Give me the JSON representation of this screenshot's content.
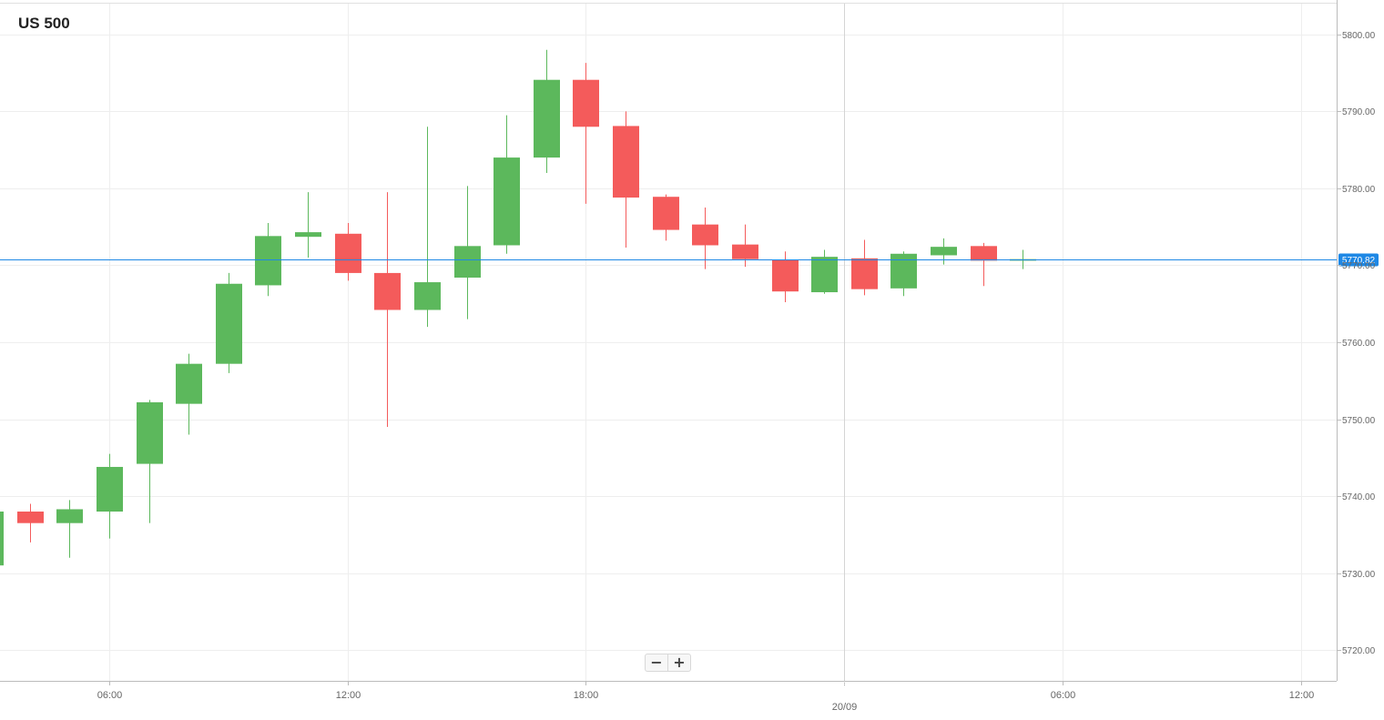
{
  "header": {
    "title": "US 500"
  },
  "zoom": {
    "minus_label": "−",
    "plus_label": "+"
  },
  "colors": {
    "up": "#5cb85c",
    "down": "#f45b5b",
    "price_line": "#1e88e5",
    "grid": "#eeeeee",
    "axis_text": "#666666"
  },
  "chart_data": {
    "type": "candlestick",
    "title": "US 500",
    "interval": "1h",
    "y_axis": {
      "position": "right",
      "ylim": [
        5716,
        5804
      ],
      "ticks": [
        5720,
        5730,
        5740,
        5750,
        5760,
        5770,
        5780,
        5790,
        5800
      ],
      "tick_labels": [
        "5720.00",
        "5730.00",
        "5740.00",
        "5750.00",
        "5760.00",
        "5770.00",
        "5780.00",
        "5790.00",
        "5800.00"
      ]
    },
    "x_axis": {
      "ticks": [
        {
          "time": 9,
          "label": "06:00"
        },
        {
          "time": 15,
          "label": "12:00"
        },
        {
          "time": 21,
          "label": "18:00"
        },
        {
          "time": 33,
          "label": "06:00"
        },
        {
          "time": 39,
          "label": "12:00"
        }
      ],
      "day_marker": {
        "time": 27.5,
        "label": "20/09"
      },
      "xlim": [
        6.25,
        39.9
      ]
    },
    "current_price": {
      "value": 5770.82,
      "label": "5770.82"
    },
    "candles": [
      {
        "time": 6,
        "open": 5731.0,
        "high": 5738.0,
        "low": 5731.0,
        "close": 5738.0
      },
      {
        "time": 7,
        "open": 5738.0,
        "high": 5739.0,
        "low": 5734.0,
        "close": 5736.5
      },
      {
        "time": 8,
        "open": 5736.5,
        "high": 5739.5,
        "low": 5732.0,
        "close": 5738.3
      },
      {
        "time": 9,
        "open": 5738.0,
        "high": 5745.5,
        "low": 5734.5,
        "close": 5743.8
      },
      {
        "time": 10,
        "open": 5744.2,
        "high": 5752.5,
        "low": 5736.5,
        "close": 5752.2
      },
      {
        "time": 11,
        "open": 5752.0,
        "high": 5758.5,
        "low": 5748.0,
        "close": 5757.2
      },
      {
        "time": 12,
        "open": 5757.2,
        "high": 5769.0,
        "low": 5756.0,
        "close": 5767.6
      },
      {
        "time": 13,
        "open": 5767.4,
        "high": 5775.5,
        "low": 5766.0,
        "close": 5773.8
      },
      {
        "time": 14,
        "open": 5773.7,
        "high": 5779.5,
        "low": 5771.0,
        "close": 5774.3
      },
      {
        "time": 15,
        "open": 5774.1,
        "high": 5775.5,
        "low": 5768.0,
        "close": 5769.0
      },
      {
        "time": 16,
        "open": 5769.0,
        "high": 5779.5,
        "low": 5749.0,
        "close": 5764.2
      },
      {
        "time": 17,
        "open": 5764.2,
        "high": 5788.0,
        "low": 5762.0,
        "close": 5767.8
      },
      {
        "time": 18,
        "open": 5768.4,
        "high": 5780.3,
        "low": 5763.0,
        "close": 5772.5
      },
      {
        "time": 19,
        "open": 5772.6,
        "high": 5789.5,
        "low": 5771.5,
        "close": 5784.0
      },
      {
        "time": 20,
        "open": 5784.0,
        "high": 5798.0,
        "low": 5782.0,
        "close": 5794.1
      },
      {
        "time": 21,
        "open": 5794.1,
        "high": 5796.3,
        "low": 5778.0,
        "close": 5788.0
      },
      {
        "time": 22,
        "open": 5788.1,
        "high": 5790.0,
        "low": 5772.3,
        "close": 5778.8
      },
      {
        "time": 23,
        "open": 5778.9,
        "high": 5779.2,
        "low": 5773.2,
        "close": 5774.6
      },
      {
        "time": 24,
        "open": 5775.3,
        "high": 5777.5,
        "low": 5769.5,
        "close": 5772.6
      },
      {
        "time": 25,
        "open": 5772.7,
        "high": 5775.3,
        "low": 5769.8,
        "close": 5770.8
      },
      {
        "time": 26,
        "open": 5770.7,
        "high": 5771.8,
        "low": 5765.2,
        "close": 5766.6
      },
      {
        "time": 27,
        "open": 5766.5,
        "high": 5772.0,
        "low": 5766.3,
        "close": 5771.1
      },
      {
        "time": 28,
        "open": 5770.9,
        "high": 5773.3,
        "low": 5766.1,
        "close": 5766.9
      },
      {
        "time": 29,
        "open": 5767.0,
        "high": 5771.8,
        "low": 5766.0,
        "close": 5771.5
      },
      {
        "time": 30,
        "open": 5771.3,
        "high": 5773.5,
        "low": 5770.1,
        "close": 5772.4
      },
      {
        "time": 31,
        "open": 5772.5,
        "high": 5772.9,
        "low": 5767.3,
        "close": 5770.6
      },
      {
        "time": 32,
        "open": 5770.6,
        "high": 5772.0,
        "low": 5769.5,
        "close": 5770.8
      }
    ]
  }
}
